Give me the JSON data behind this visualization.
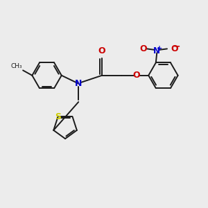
{
  "bg_color": "#ececec",
  "bond_color": "#1a1a1a",
  "N_color": "#0000cc",
  "O_color": "#cc0000",
  "S_color": "#cccc00",
  "figsize": [
    3.0,
    3.0
  ],
  "dpi": 100,
  "xlim": [
    0,
    10
  ],
  "ylim": [
    0,
    10
  ]
}
